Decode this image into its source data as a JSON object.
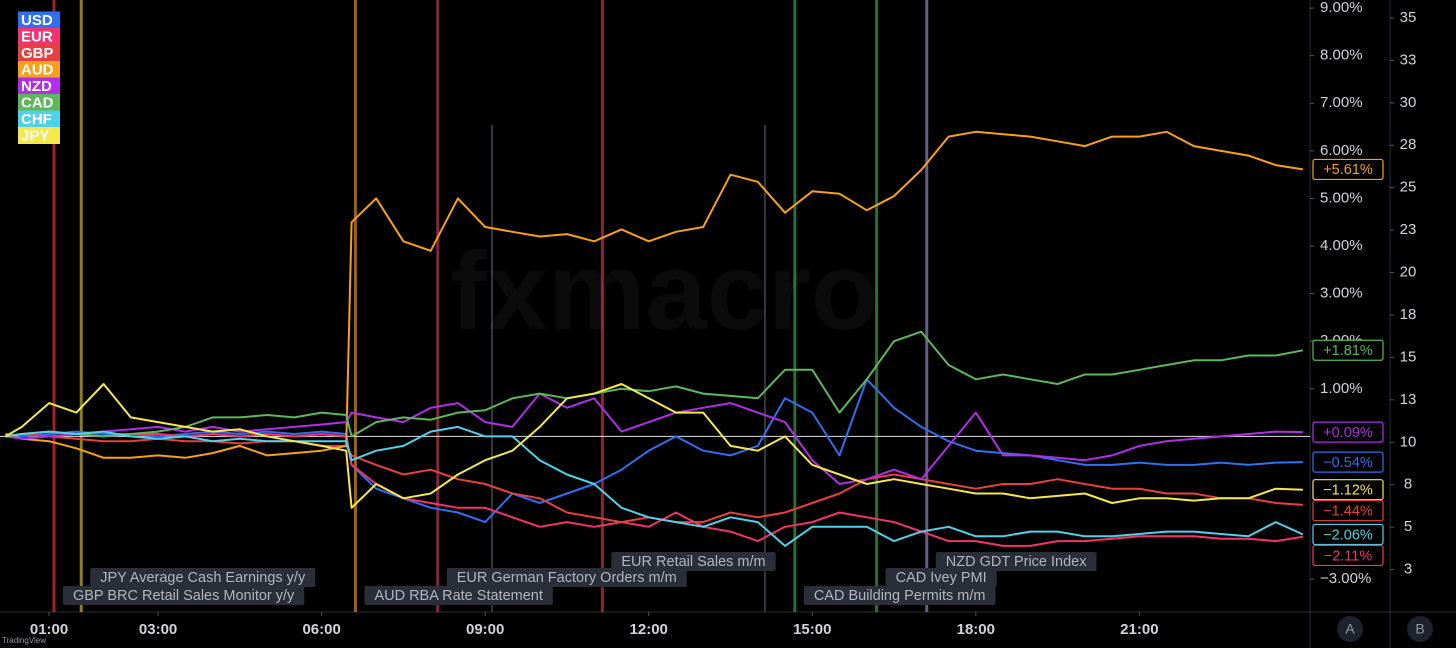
{
  "chart_data": {
    "type": "line",
    "watermark": "fxmacro",
    "x": [
      0.2,
      0.5,
      1,
      1.5,
      2,
      2.5,
      3,
      3.5,
      4,
      4.5,
      5,
      5.5,
      6,
      6.45,
      6.55,
      7,
      7.5,
      8,
      8.5,
      9,
      9.5,
      10,
      10.5,
      11,
      11.5,
      12,
      12.5,
      13,
      13.5,
      14,
      14.5,
      15,
      15.5,
      16,
      16.5,
      17,
      17.5,
      18,
      18.5,
      19,
      19.5,
      20,
      20.5,
      21,
      21.5,
      22,
      22.5,
      23,
      23.5,
      24
    ],
    "xlim": [
      0.1,
      24.13
    ],
    "xticks": [
      {
        "value": 1,
        "label": "01:00"
      },
      {
        "value": 3,
        "label": "03:00"
      },
      {
        "value": 6,
        "label": "06:00"
      },
      {
        "value": 9,
        "label": "09:00"
      },
      {
        "value": 12,
        "label": "12:00"
      },
      {
        "value": 15,
        "label": "15:00"
      },
      {
        "value": 18,
        "label": "18:00"
      },
      {
        "value": 21,
        "label": "21:00"
      }
    ],
    "ylim": [
      -3.69,
      9.17
    ],
    "yticks": [
      {
        "value": 9,
        "label": "9.00%"
      },
      {
        "value": 8,
        "label": "8.00%"
      },
      {
        "value": 7,
        "label": "7.00%"
      },
      {
        "value": 6,
        "label": "6.00%"
      },
      {
        "value": 5,
        "label": "5.00%"
      },
      {
        "value": 4,
        "label": "4.00%"
      },
      {
        "value": 3,
        "label": "3.00%"
      },
      {
        "value": 2,
        "label": "2.00%"
      },
      {
        "value": 1,
        "label": "1.00%"
      },
      {
        "value": -3,
        "label": "−3.00%"
      }
    ],
    "y2lim": [
      0,
      36.06
    ],
    "y2ticks": [
      35,
      {
        "value": 32.5,
        "label": "33"
      },
      30,
      {
        "value": 27.5,
        "label": "28"
      },
      25,
      {
        "value": 22.5,
        "label": "23"
      },
      20,
      {
        "value": 17.5,
        "label": "18"
      },
      15,
      {
        "value": 12.5,
        "label": "13"
      },
      10,
      {
        "value": 7.5,
        "label": "8"
      },
      5,
      {
        "value": 2.5,
        "label": "3"
      }
    ],
    "grid": false,
    "series": [
      {
        "name": "USD",
        "color": "#2f6ff0",
        "end_label": "−0.54%",
        "values": [
          0.05,
          0.0,
          0.05,
          0.1,
          0.05,
          0.05,
          0.0,
          0.05,
          0.1,
          0.05,
          0.1,
          0.05,
          0.1,
          0.05,
          -0.6,
          -1.1,
          -1.3,
          -1.5,
          -1.6,
          -1.8,
          -1.2,
          -1.4,
          -1.2,
          -1.0,
          -0.7,
          -0.3,
          0.0,
          -0.3,
          -0.4,
          -0.2,
          0.8,
          0.5,
          -0.4,
          1.2,
          0.6,
          0.2,
          -0.1,
          -0.3,
          -0.35,
          -0.4,
          -0.5,
          -0.6,
          -0.6,
          -0.55,
          -0.6,
          -0.6,
          -0.55,
          -0.6,
          -0.55,
          -0.54
        ]
      },
      {
        "name": "EUR",
        "color": "#f2336f",
        "end_label": "−2.11%",
        "values": [
          0,
          0.05,
          0.1,
          0.05,
          0.0,
          0.05,
          0.05,
          0.0,
          0.05,
          0.0,
          0.05,
          0.0,
          0.05,
          0.0,
          -0.6,
          -1.0,
          -1.3,
          -1.4,
          -1.5,
          -1.5,
          -1.7,
          -1.9,
          -1.8,
          -1.9,
          -1.8,
          -1.9,
          -1.6,
          -1.9,
          -2.0,
          -2.2,
          -1.9,
          -1.8,
          -1.6,
          -1.7,
          -1.8,
          -2.0,
          -2.2,
          -2.2,
          -2.3,
          -2.3,
          -2.2,
          -2.2,
          -2.15,
          -2.1,
          -2.1,
          -2.1,
          -2.15,
          -2.15,
          -2.2,
          -2.11
        ]
      },
      {
        "name": "GBP",
        "color": "#e8403f",
        "end_label": "−1.44%",
        "values": [
          0,
          0.05,
          0,
          -0.05,
          -0.1,
          -0.1,
          -0.05,
          -0.1,
          -0.1,
          -0.15,
          -0.1,
          -0.1,
          -0.2,
          -0.2,
          -0.4,
          -0.6,
          -0.8,
          -0.7,
          -0.9,
          -1.0,
          -1.2,
          -1.3,
          -1.6,
          -1.7,
          -1.8,
          -1.7,
          -1.8,
          -1.8,
          -1.6,
          -1.7,
          -1.6,
          -1.4,
          -1.2,
          -0.9,
          -0.8,
          -0.9,
          -1.0,
          -1.1,
          -1.0,
          -1.0,
          -0.9,
          -1.0,
          -1.1,
          -1.1,
          -1.2,
          -1.2,
          -1.3,
          -1.3,
          -1.4,
          -1.44
        ]
      },
      {
        "name": "AUD",
        "color": "#f7a11a",
        "end_label": "+5.61%",
        "values": [
          0.05,
          -0.05,
          -0.1,
          -0.25,
          -0.45,
          -0.45,
          -0.4,
          -0.45,
          -0.35,
          -0.2,
          -0.4,
          -0.35,
          -0.3,
          -0.2,
          4.5,
          5.0,
          4.1,
          3.9,
          5.0,
          4.4,
          4.3,
          4.2,
          4.25,
          4.1,
          4.35,
          4.1,
          4.3,
          4.4,
          5.5,
          5.35,
          4.7,
          5.15,
          5.1,
          4.75,
          5.05,
          5.6,
          6.3,
          6.4,
          6.35,
          6.3,
          6.2,
          6.1,
          6.3,
          6.3,
          6.4,
          6.1,
          6.0,
          5.9,
          5.7,
          5.61
        ]
      },
      {
        "name": "NZD",
        "color": "#b12ee8",
        "end_label": "+0.09%",
        "values": [
          0,
          -0.05,
          0,
          0.05,
          0.1,
          0.15,
          0.2,
          0.1,
          0.2,
          0.1,
          0.15,
          0.2,
          0.25,
          0.3,
          0.5,
          0.4,
          0.3,
          0.6,
          0.7,
          0.3,
          0.2,
          0.9,
          0.6,
          0.8,
          0.1,
          0.3,
          0.5,
          0.6,
          0.7,
          0.5,
          0.3,
          -0.5,
          -1.0,
          -0.9,
          -0.7,
          -0.9,
          -0.2,
          0.5,
          -0.4,
          -0.4,
          -0.45,
          -0.5,
          -0.4,
          -0.2,
          -0.1,
          -0.05,
          0.0,
          0.05,
          0.1,
          0.09
        ]
      },
      {
        "name": "CAD",
        "color": "#5cb85a",
        "end_label": "+1.81%",
        "values": [
          0,
          0.05,
          0.1,
          0.05,
          0,
          0.05,
          0.1,
          0.2,
          0.4,
          0.4,
          0.45,
          0.4,
          0.5,
          0.45,
          0.0,
          0.3,
          0.4,
          0.35,
          0.5,
          0.55,
          0.8,
          0.9,
          0.8,
          0.9,
          1.0,
          0.95,
          1.05,
          0.9,
          0.85,
          0.8,
          1.4,
          1.4,
          0.5,
          1.2,
          2.0,
          2.2,
          1.5,
          1.2,
          1.3,
          1.2,
          1.1,
          1.3,
          1.3,
          1.4,
          1.5,
          1.6,
          1.6,
          1.7,
          1.7,
          1.81
        ]
      },
      {
        "name": "CHF",
        "color": "#4fd2e8",
        "end_label": "−2.06%",
        "values": [
          0,
          0.05,
          0.1,
          0.05,
          0.1,
          0.0,
          -0.05,
          0.0,
          -0.1,
          -0.05,
          -0.1,
          -0.1,
          -0.1,
          -0.1,
          -0.5,
          -0.3,
          -0.2,
          0.1,
          0.2,
          0.0,
          0.0,
          -0.5,
          -0.8,
          -1.0,
          -1.5,
          -1.7,
          -1.8,
          -1.9,
          -1.7,
          -1.8,
          -2.3,
          -1.9,
          -1.9,
          -1.9,
          -2.2,
          -2.0,
          -1.9,
          -2.1,
          -2.1,
          -2.0,
          -2.0,
          -2.1,
          -2.1,
          -2.05,
          -2.0,
          -2.0,
          -2.05,
          -2.1,
          -1.8,
          -2.06
        ]
      },
      {
        "name": "JPY",
        "color": "#f5e84a",
        "end_label": "−1.12%",
        "values": [
          0,
          0.2,
          0.7,
          0.5,
          1.1,
          0.4,
          0.3,
          0.2,
          0.1,
          0.15,
          0.0,
          -0.1,
          -0.2,
          -0.3,
          -1.5,
          -1.0,
          -1.3,
          -1.2,
          -0.8,
          -0.5,
          -0.3,
          0.2,
          0.8,
          0.9,
          1.1,
          0.8,
          0.5,
          0.5,
          -0.2,
          -0.3,
          0.0,
          -0.6,
          -0.8,
          -1.0,
          -0.9,
          -1.0,
          -1.1,
          -1.2,
          -1.2,
          -1.3,
          -1.25,
          -1.2,
          -1.4,
          -1.3,
          -1.3,
          -1.35,
          -1.3,
          -1.3,
          -1.1,
          -1.12
        ]
      }
    ],
    "events": [
      {
        "label": "GBP BRC Retail Sales Monitor y/y",
        "x": 1.09,
        "color": "rgba(242,54,69,0.65)"
      },
      {
        "label": "JPY Average Cash Earnings y/y",
        "x": 1.59,
        "color": "rgba(240,210,40,0.6)"
      },
      {
        "label": "AUD RBA Rate Statement",
        "x": 6.62,
        "color": "rgba(247,150,20,0.65)"
      },
      {
        "label": "EUR German Factory Orders m/m",
        "x": 8.13,
        "color": "rgba(240,70,110,0.55)"
      },
      {
        "label": "EUR Retail Sales m/m",
        "x": 11.15,
        "color": "rgba(240,70,110,0.55)"
      },
      {
        "label": "CAD Building Permits m/m",
        "x": 14.68,
        "color": "rgba(80,180,80,0.6)"
      },
      {
        "label": "CAD Ivey PMI",
        "x": 16.18,
        "color": "rgba(80,180,80,0.6)"
      },
      {
        "label": "NZD GDT Price Index",
        "x": 17.1,
        "color": "rgba(150,130,190,0.7)"
      }
    ]
  },
  "ui": {
    "source": "TradingView",
    "buttons": [
      "A",
      "B"
    ]
  }
}
